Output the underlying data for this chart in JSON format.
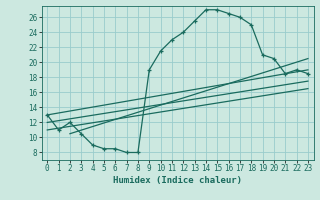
{
  "title": "",
  "xlabel": "Humidex (Indice chaleur)",
  "bg_color": "#cce8e0",
  "grid_color": "#99cccc",
  "line_color": "#1a6b5e",
  "xlim": [
    -0.5,
    23.5
  ],
  "ylim": [
    7.0,
    27.5
  ],
  "xticks": [
    0,
    1,
    2,
    3,
    4,
    5,
    6,
    7,
    8,
    9,
    10,
    11,
    12,
    13,
    14,
    15,
    16,
    17,
    18,
    19,
    20,
    21,
    22,
    23
  ],
  "yticks": [
    8,
    10,
    12,
    14,
    16,
    18,
    20,
    22,
    24,
    26
  ],
  "main_x": [
    0,
    1,
    2,
    3,
    4,
    5,
    6,
    7,
    8,
    9,
    10,
    11,
    12,
    13,
    14,
    15,
    16,
    17,
    18,
    19,
    20,
    21,
    22,
    23
  ],
  "main_y": [
    13,
    11,
    12,
    10.5,
    9,
    8.5,
    8.5,
    8,
    8,
    19,
    21.5,
    23,
    24,
    25.5,
    27,
    27,
    26.5,
    26,
    25,
    21,
    20.5,
    18.5,
    19,
    18.5
  ],
  "trend1_x": [
    0,
    23
  ],
  "trend1_y": [
    13.0,
    19.0
  ],
  "trend2_x": [
    0,
    23
  ],
  "trend2_y": [
    12.0,
    17.5
  ],
  "trend3_x": [
    0,
    23
  ],
  "trend3_y": [
    11.0,
    16.5
  ],
  "trend4_x": [
    2,
    23
  ],
  "trend4_y": [
    10.5,
    20.5
  ]
}
